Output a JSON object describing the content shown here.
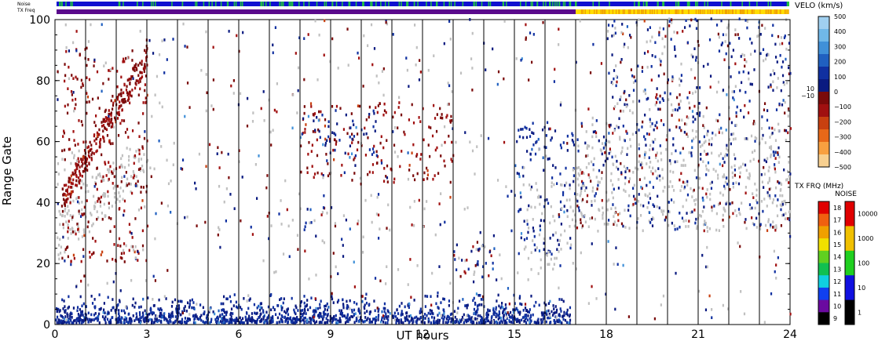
{
  "chart_data": {
    "type": "heatmap",
    "title": "",
    "xlabel": "UT hours",
    "ylabel": "Range Gate",
    "xlim": [
      0,
      24
    ],
    "ylim": [
      0,
      100
    ],
    "x_ticks": [
      "0",
      "3",
      "6",
      "9",
      "12",
      "15",
      "18",
      "21",
      "24"
    ],
    "y_ticks": [
      "0",
      "20",
      "40",
      "60",
      "80",
      "100"
    ],
    "scan_boundaries_ut": [
      1,
      2,
      3,
      4,
      5,
      6,
      7,
      8,
      9,
      10,
      11,
      12,
      13,
      14,
      15,
      16,
      17,
      18,
      19,
      20,
      21,
      22,
      23
    ],
    "top_bars": {
      "noise_label": "Noise",
      "txfreq_label": "TX Freq",
      "noise_color": "#1010d0",
      "noise_speckle_color": "#22c040",
      "txfreq_before": "#5a0a8c",
      "txfreq_after": "#ffdd00",
      "txfreq_change_ut": 17.0
    },
    "velocity_colorbar": {
      "title": "VELO (km/s)",
      "tick_labels": [
        "500",
        "400",
        "300",
        "200",
        "100",
        "0",
        "−100",
        "−200",
        "−300",
        "−400",
        "−500"
      ],
      "band_labels": [
        "10",
        "−10"
      ],
      "colors": [
        "#a0d0f0",
        "#70b8e8",
        "#4090d8",
        "#2060c0",
        "#1030a0",
        "#0a1a80",
        "#7a0a0a",
        "#a01010",
        "#c84010",
        "#e86818",
        "#f8a040",
        "#f8d090"
      ]
    },
    "txfreq_colorbar": {
      "title": "TX FRQ (MHz)",
      "tick_labels": [
        "18",
        "17",
        "16",
        "15",
        "14",
        "13",
        "12",
        "11",
        "10",
        "9"
      ],
      "colors": [
        "#e00000",
        "#f06010",
        "#f0a000",
        "#f0e000",
        "#60d020",
        "#10c050",
        "#10d0e0",
        "#1040f0",
        "#6a0aa0",
        "#000000"
      ]
    },
    "noise_colorbar": {
      "title": "NOISE",
      "tick_labels": [
        "10000",
        "1000",
        "100",
        "10",
        "1"
      ],
      "colors": [
        "#e00000",
        "#f0c000",
        "#20d020",
        "#1010e0",
        "#000000"
      ]
    },
    "regions": [
      {
        "kind": "ground",
        "ut": [
          0.05,
          3.2
        ],
        "gate": [
          20,
          58
        ],
        "note": "lower diagonal band"
      },
      {
        "kind": "ground",
        "ut": [
          0.05,
          1.0
        ],
        "gate": [
          44,
          58
        ]
      },
      {
        "kind": "velo_neg",
        "ut": [
          0.2,
          3.0
        ],
        "gate": [
          20,
          90
        ]
      },
      {
        "kind": "velo_neg",
        "ut": [
          8.0,
          13.0
        ],
        "gate": [
          46,
          72
        ]
      },
      {
        "kind": "velo_pos",
        "ut": [
          8.0,
          10.5
        ],
        "gate": [
          54,
          70
        ]
      },
      {
        "kind": "mixed",
        "ut": [
          7.0,
          9.2
        ],
        "gate": [
          31,
          38
        ]
      },
      {
        "kind": "mixed",
        "ut": [
          13.0,
          14.5
        ],
        "gate": [
          14,
          30
        ]
      },
      {
        "kind": "velo_pos",
        "ut": [
          15.0,
          17.0
        ],
        "gate": [
          22,
          66
        ]
      },
      {
        "kind": "ground",
        "ut": [
          15.3,
          17.0
        ],
        "gate": [
          16,
          46
        ]
      },
      {
        "kind": "ground",
        "ut": [
          17.0,
          24.0
        ],
        "gate": [
          30,
          62
        ]
      },
      {
        "kind": "mixed",
        "ut": [
          17.0,
          24.0
        ],
        "gate": [
          30,
          66
        ]
      },
      {
        "kind": "mixed",
        "ut": [
          18.0,
          24.0
        ],
        "gate": [
          62,
          100
        ]
      },
      {
        "kind": "velo_pos",
        "ut": [
          0.0,
          16.8
        ],
        "gate": [
          0,
          10
        ],
        "note": "near-range blue band"
      }
    ]
  }
}
